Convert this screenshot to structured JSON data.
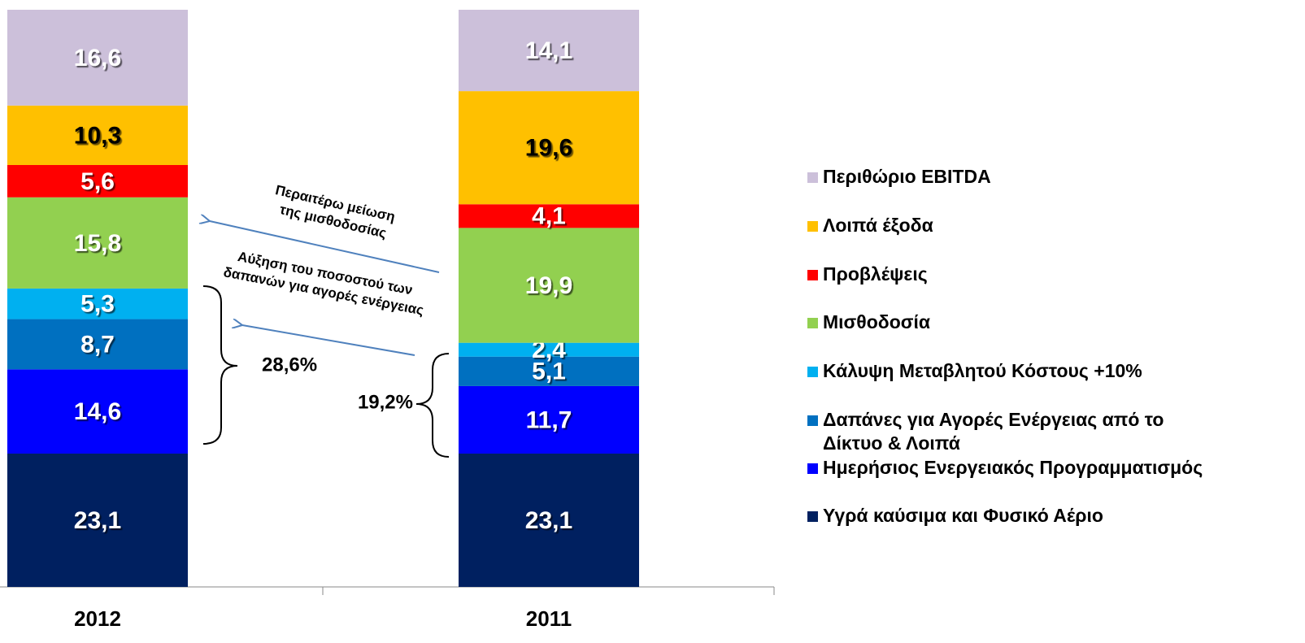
{
  "chart_data": {
    "type": "stacked_bar",
    "categories": [
      "2012",
      "2011"
    ],
    "ylim": [
      0,
      100
    ],
    "series": [
      {
        "name": "Υγρά καύσιμα και Φυσικό Αέριο",
        "color": "#002060",
        "label_color": "#ffffff",
        "values": [
          23.1,
          23.1
        ],
        "value_labels": [
          "23,1",
          "23,1"
        ]
      },
      {
        "name": "Ημερήσιος Ενεργειακός Προγραμματισμός",
        "color": "#0000ff",
        "label_color": "#ffffff",
        "values": [
          14.6,
          11.7
        ],
        "value_labels": [
          "14,6",
          "11,7"
        ]
      },
      {
        "name": [
          "Δαπάνες για Αγορές Ενέργειας από το",
          "Δίκτυο & Λοιπά"
        ],
        "color": "#0070c0",
        "label_color": "#ffffff",
        "values": [
          8.7,
          5.1
        ],
        "value_labels": [
          "8,7",
          "5,1"
        ]
      },
      {
        "name": "Κάλυψη Μεταβλητού Κόστους +10%",
        "color": "#00b0f0",
        "label_color": "#ffffff",
        "values": [
          5.3,
          2.4
        ],
        "value_labels": [
          "5,3",
          "2,4"
        ]
      },
      {
        "name": "Μισθοδοσία",
        "color": "#92d050",
        "label_color": "#ffffff",
        "values": [
          15.8,
          19.9
        ],
        "value_labels": [
          "15,8",
          "19,9"
        ]
      },
      {
        "name": "Προβλέψεις",
        "color": "#ff0000",
        "label_color": "#ffffff",
        "values": [
          5.6,
          4.1
        ],
        "value_labels": [
          "5,6",
          "4,1"
        ]
      },
      {
        "name": "Λοιπά έξοδα",
        "color": "#ffc000",
        "label_color": "#000000",
        "values": [
          10.3,
          19.6
        ],
        "value_labels": [
          "10,3",
          "19,6"
        ]
      },
      {
        "name": "Περιθώριο EBITDA",
        "color": "#ccc0da",
        "label_color": "#ffffff",
        "values": [
          16.6,
          14.1
        ],
        "value_labels": [
          "16,6",
          "14,1"
        ]
      }
    ],
    "annotations": [
      {
        "lines": [
          "Περαιτέρω μείωση",
          "της μισθοδοσίας"
        ]
      },
      {
        "lines": [
          "Αύξηση του ποσοστού των",
          "δαπανών για αγορές ενέργειας"
        ]
      },
      {
        "text": "28,6%"
      },
      {
        "text": "19,2%"
      }
    ]
  }
}
